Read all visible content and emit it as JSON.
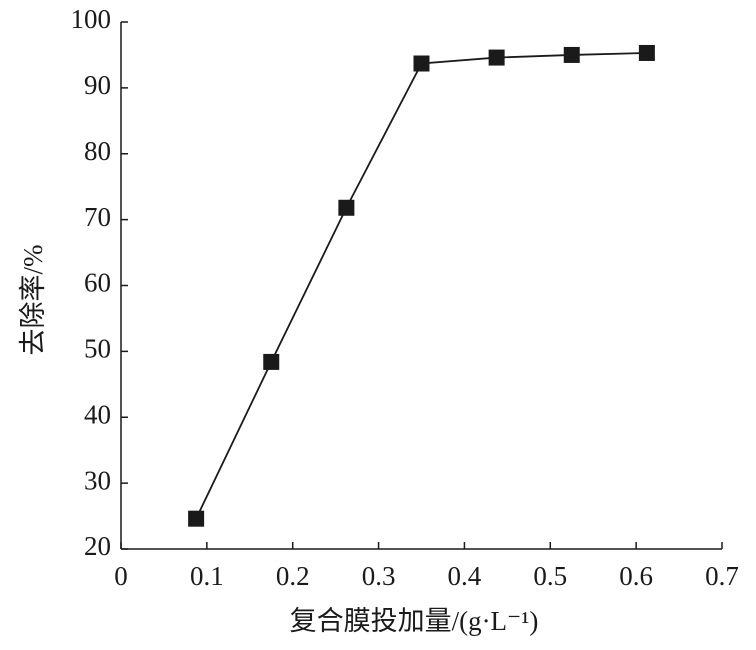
{
  "chart_data": {
    "type": "line",
    "x_label": "复合膜投加量/(g·L⁻¹)",
    "y_label": "去除率/%",
    "x": [
      0.0875,
      0.175,
      0.2625,
      0.35,
      0.4375,
      0.525,
      0.6125
    ],
    "series": [
      {
        "color": "#1a1a1a",
        "values": [
          24.6,
          48.4,
          71.8,
          93.7,
          94.6,
          95.0,
          95.3
        ]
      }
    ],
    "xlim": [
      0,
      0.7
    ],
    "xticks": [
      0,
      0.1,
      0.2,
      0.3,
      0.4,
      0.5,
      0.6,
      0.7
    ],
    "ylim": [
      20,
      100
    ],
    "yticks": [
      20,
      30,
      40,
      50,
      60,
      70,
      80,
      90,
      100
    ],
    "grid": false
  }
}
